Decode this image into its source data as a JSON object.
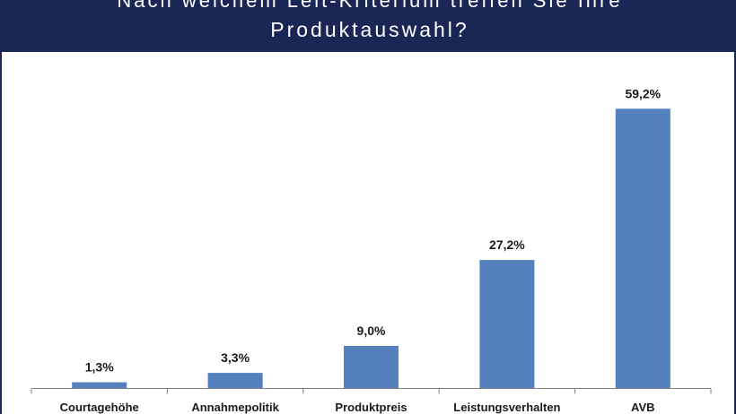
{
  "title_line_1": "Nach welchem Leit-Kriterium treffen Sie Ihre",
  "title_line_2": "Produktauswahl?",
  "colors": {
    "banner": "#1a2756",
    "bar": "#5580be",
    "axis": "#808080"
  },
  "chart_data": {
    "type": "bar",
    "title": "Nach welchem Leit-Kriterium treffen Sie Ihre Produktauswahl?",
    "categories": [
      "Courtagehöhe",
      "Annahmepolitik",
      "Produktpreis",
      "Leistungsverhalten",
      "AVB"
    ],
    "values": [
      1.3,
      3.3,
      9.0,
      27.2,
      59.2
    ],
    "value_labels": [
      "1,3%",
      "3,3%",
      "9,0%",
      "27,2%",
      "59,2%"
    ],
    "ylim": [
      0,
      64
    ],
    "grid": false,
    "legend": "none"
  }
}
